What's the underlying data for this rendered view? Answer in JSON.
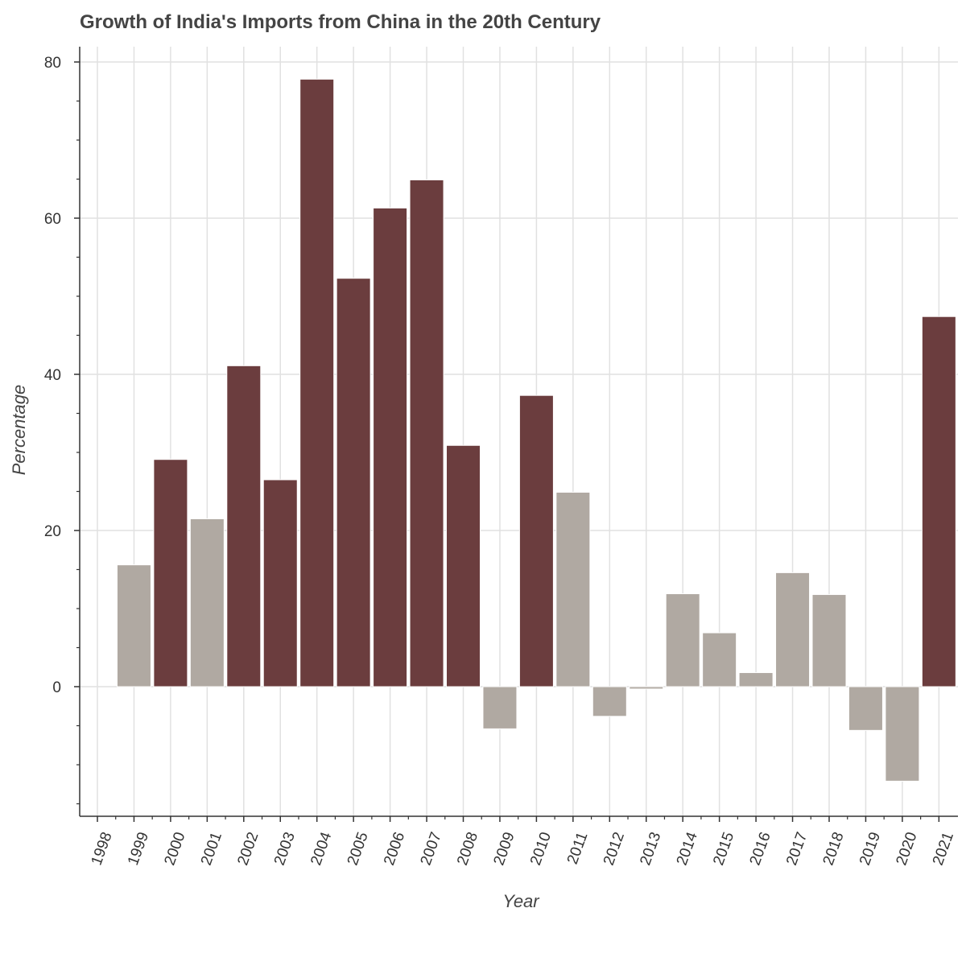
{
  "chart_data": {
    "type": "bar",
    "title": "Growth of India's Imports from China in the 20th Century",
    "xlabel": "Year",
    "ylabel": "Percentage",
    "x_ticks": [
      "1998",
      "1999",
      "2000",
      "2001",
      "2002",
      "2003",
      "2004",
      "2005",
      "2006",
      "2007",
      "2008",
      "2009",
      "2010",
      "2011",
      "2012",
      "2013",
      "2014",
      "2015",
      "2016",
      "2017",
      "2018",
      "2019",
      "2020",
      "2021"
    ],
    "y_ticks": [
      0,
      20,
      40,
      60,
      80
    ],
    "ylim": [
      -16.5,
      83.5
    ],
    "grid": true,
    "categories": [
      "1999",
      "2000",
      "2001",
      "2002",
      "2003",
      "2004",
      "2005",
      "2006",
      "2007",
      "2008",
      "2009",
      "2010",
      "2011",
      "2012",
      "2013",
      "2014",
      "2015",
      "2016",
      "2017",
      "2018",
      "2019",
      "2020",
      "2021"
    ],
    "values": [
      15.6,
      29.1,
      21.5,
      41.1,
      26.5,
      77.8,
      52.3,
      61.3,
      64.9,
      30.9,
      -5.4,
      37.3,
      24.9,
      -3.8,
      -0.3,
      11.9,
      6.9,
      1.8,
      14.6,
      11.8,
      -5.6,
      -12.1,
      47.4
    ],
    "colors": {
      "high": "#6b3d3e",
      "low": "#b0a9a2",
      "grid": "#e1e1e1",
      "axis": "#333333"
    },
    "threshold": 26
  }
}
